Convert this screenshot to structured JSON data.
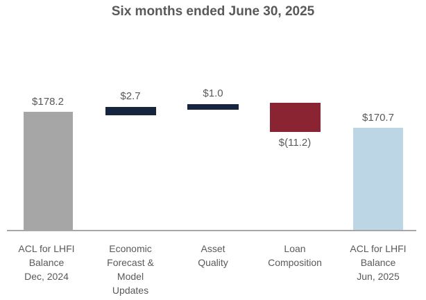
{
  "title": "Six months ended June 30, 2025",
  "chart_data": {
    "type": "bar",
    "subtype": "waterfall",
    "title": "Six months ended June 30, 2025",
    "categories": [
      "ACL for LHFI Balance Dec, 2024",
      "Economic Forecast & Model Updates",
      "Asset Quality",
      "Loan Composition",
      "ACL for LHFI Balance Jun, 2025"
    ],
    "categories_display": [
      "ACL for LHFI\nBalance\nDec, 2024",
      "Economic\nForecast &\nModel\nUpdates",
      "Asset\nQuality",
      "Loan\nComposition",
      "ACL for LHFI\nBalance\nJun, 2025"
    ],
    "values": [
      178.2,
      2.7,
      1.0,
      -11.2,
      170.7
    ],
    "value_labels": [
      "$178.2",
      "$2.7",
      "$1.0",
      "$(11.2)",
      "$170.7"
    ],
    "bar_roles": [
      "total",
      "increase",
      "increase",
      "decrease",
      "total"
    ],
    "layout": {
      "y_axis_visible": false,
      "gridlines": false,
      "legend": "none",
      "value_label_positions": [
        "above",
        "above",
        "above",
        "below",
        "above"
      ]
    },
    "colors": {
      "bar_total_start": "#A6A6A6",
      "bar_increase": "#16243E",
      "bar_decrease": "#8A2432",
      "bar_total_end": "#BDD6E6",
      "axis_line": "#A6A6A6",
      "text": "#595959"
    }
  }
}
